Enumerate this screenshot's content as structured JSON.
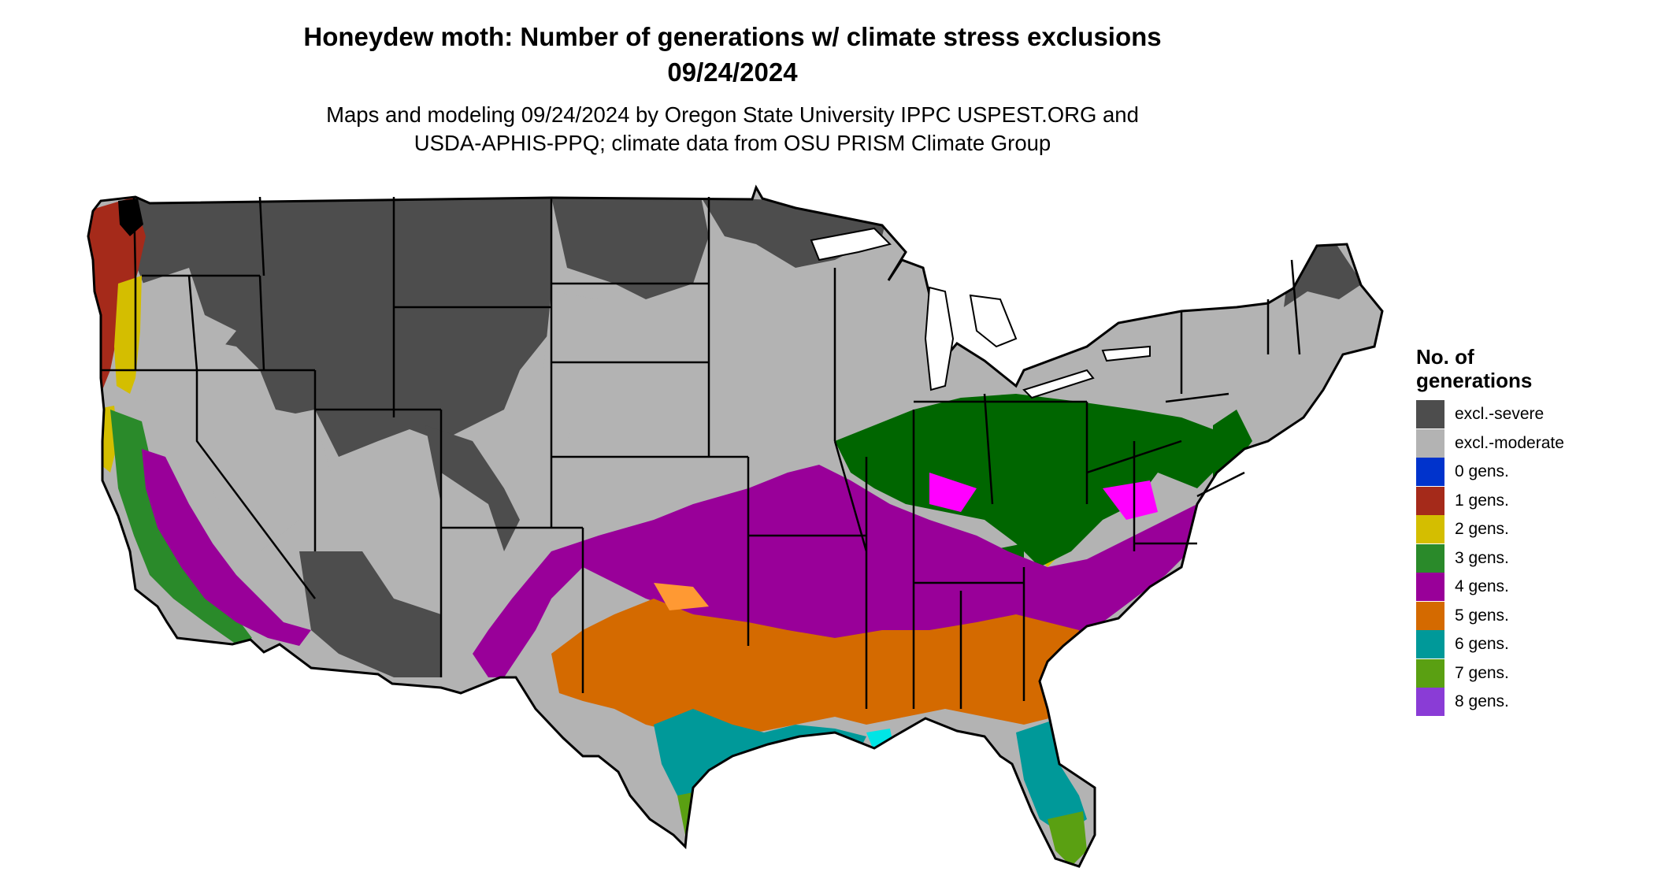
{
  "title_line1": "Honeydew moth: Number of generations w/ climate stress exclusions",
  "title_line2": "09/24/2024",
  "subtitle_line1": "Maps and modeling 09/24/2024 by Oregon State University IPPC USPEST.ORG and",
  "subtitle_line2": "USDA-APHIS-PPQ; climate data from OSU PRISM Climate Group",
  "legend": {
    "title_line1": "No. of",
    "title_line2": "generations",
    "items": [
      {
        "label": "excl.-severe",
        "color": "#4d4d4d"
      },
      {
        "label": "excl.-moderate",
        "color": "#b3b3b3"
      },
      {
        "label": "0 gens.",
        "color": "#0033cc"
      },
      {
        "label": "1 gens.",
        "color": "#a52a1a"
      },
      {
        "label": "2 gens.",
        "color": "#d4be00"
      },
      {
        "label": "3 gens.",
        "color": "#2a8a2a"
      },
      {
        "label": "4 gens.",
        "color": "#990099"
      },
      {
        "label": "5 gens.",
        "color": "#d46a00"
      },
      {
        "label": "6 gens.",
        "color": "#009999"
      },
      {
        "label": "7 gens.",
        "color": "#5aa012"
      },
      {
        "label": "8 gens.",
        "color": "#8a3cd6"
      }
    ]
  },
  "map_colors": {
    "severe": "#4d4d4d",
    "moderate": "#b3b3b3",
    "gen1": "#a52a1a",
    "gen2": "#d4be00",
    "gen3": "#006600",
    "gen4": "#990099",
    "gen4_edge": "#ff00ff",
    "gen5": "#d46a00",
    "gen5_edge": "#ff9933",
    "gen6": "#009999",
    "gen6_edge": "#00e5e5",
    "gen7": "#5aa012",
    "gen8": "#8a3cd6",
    "border": "#000000"
  }
}
